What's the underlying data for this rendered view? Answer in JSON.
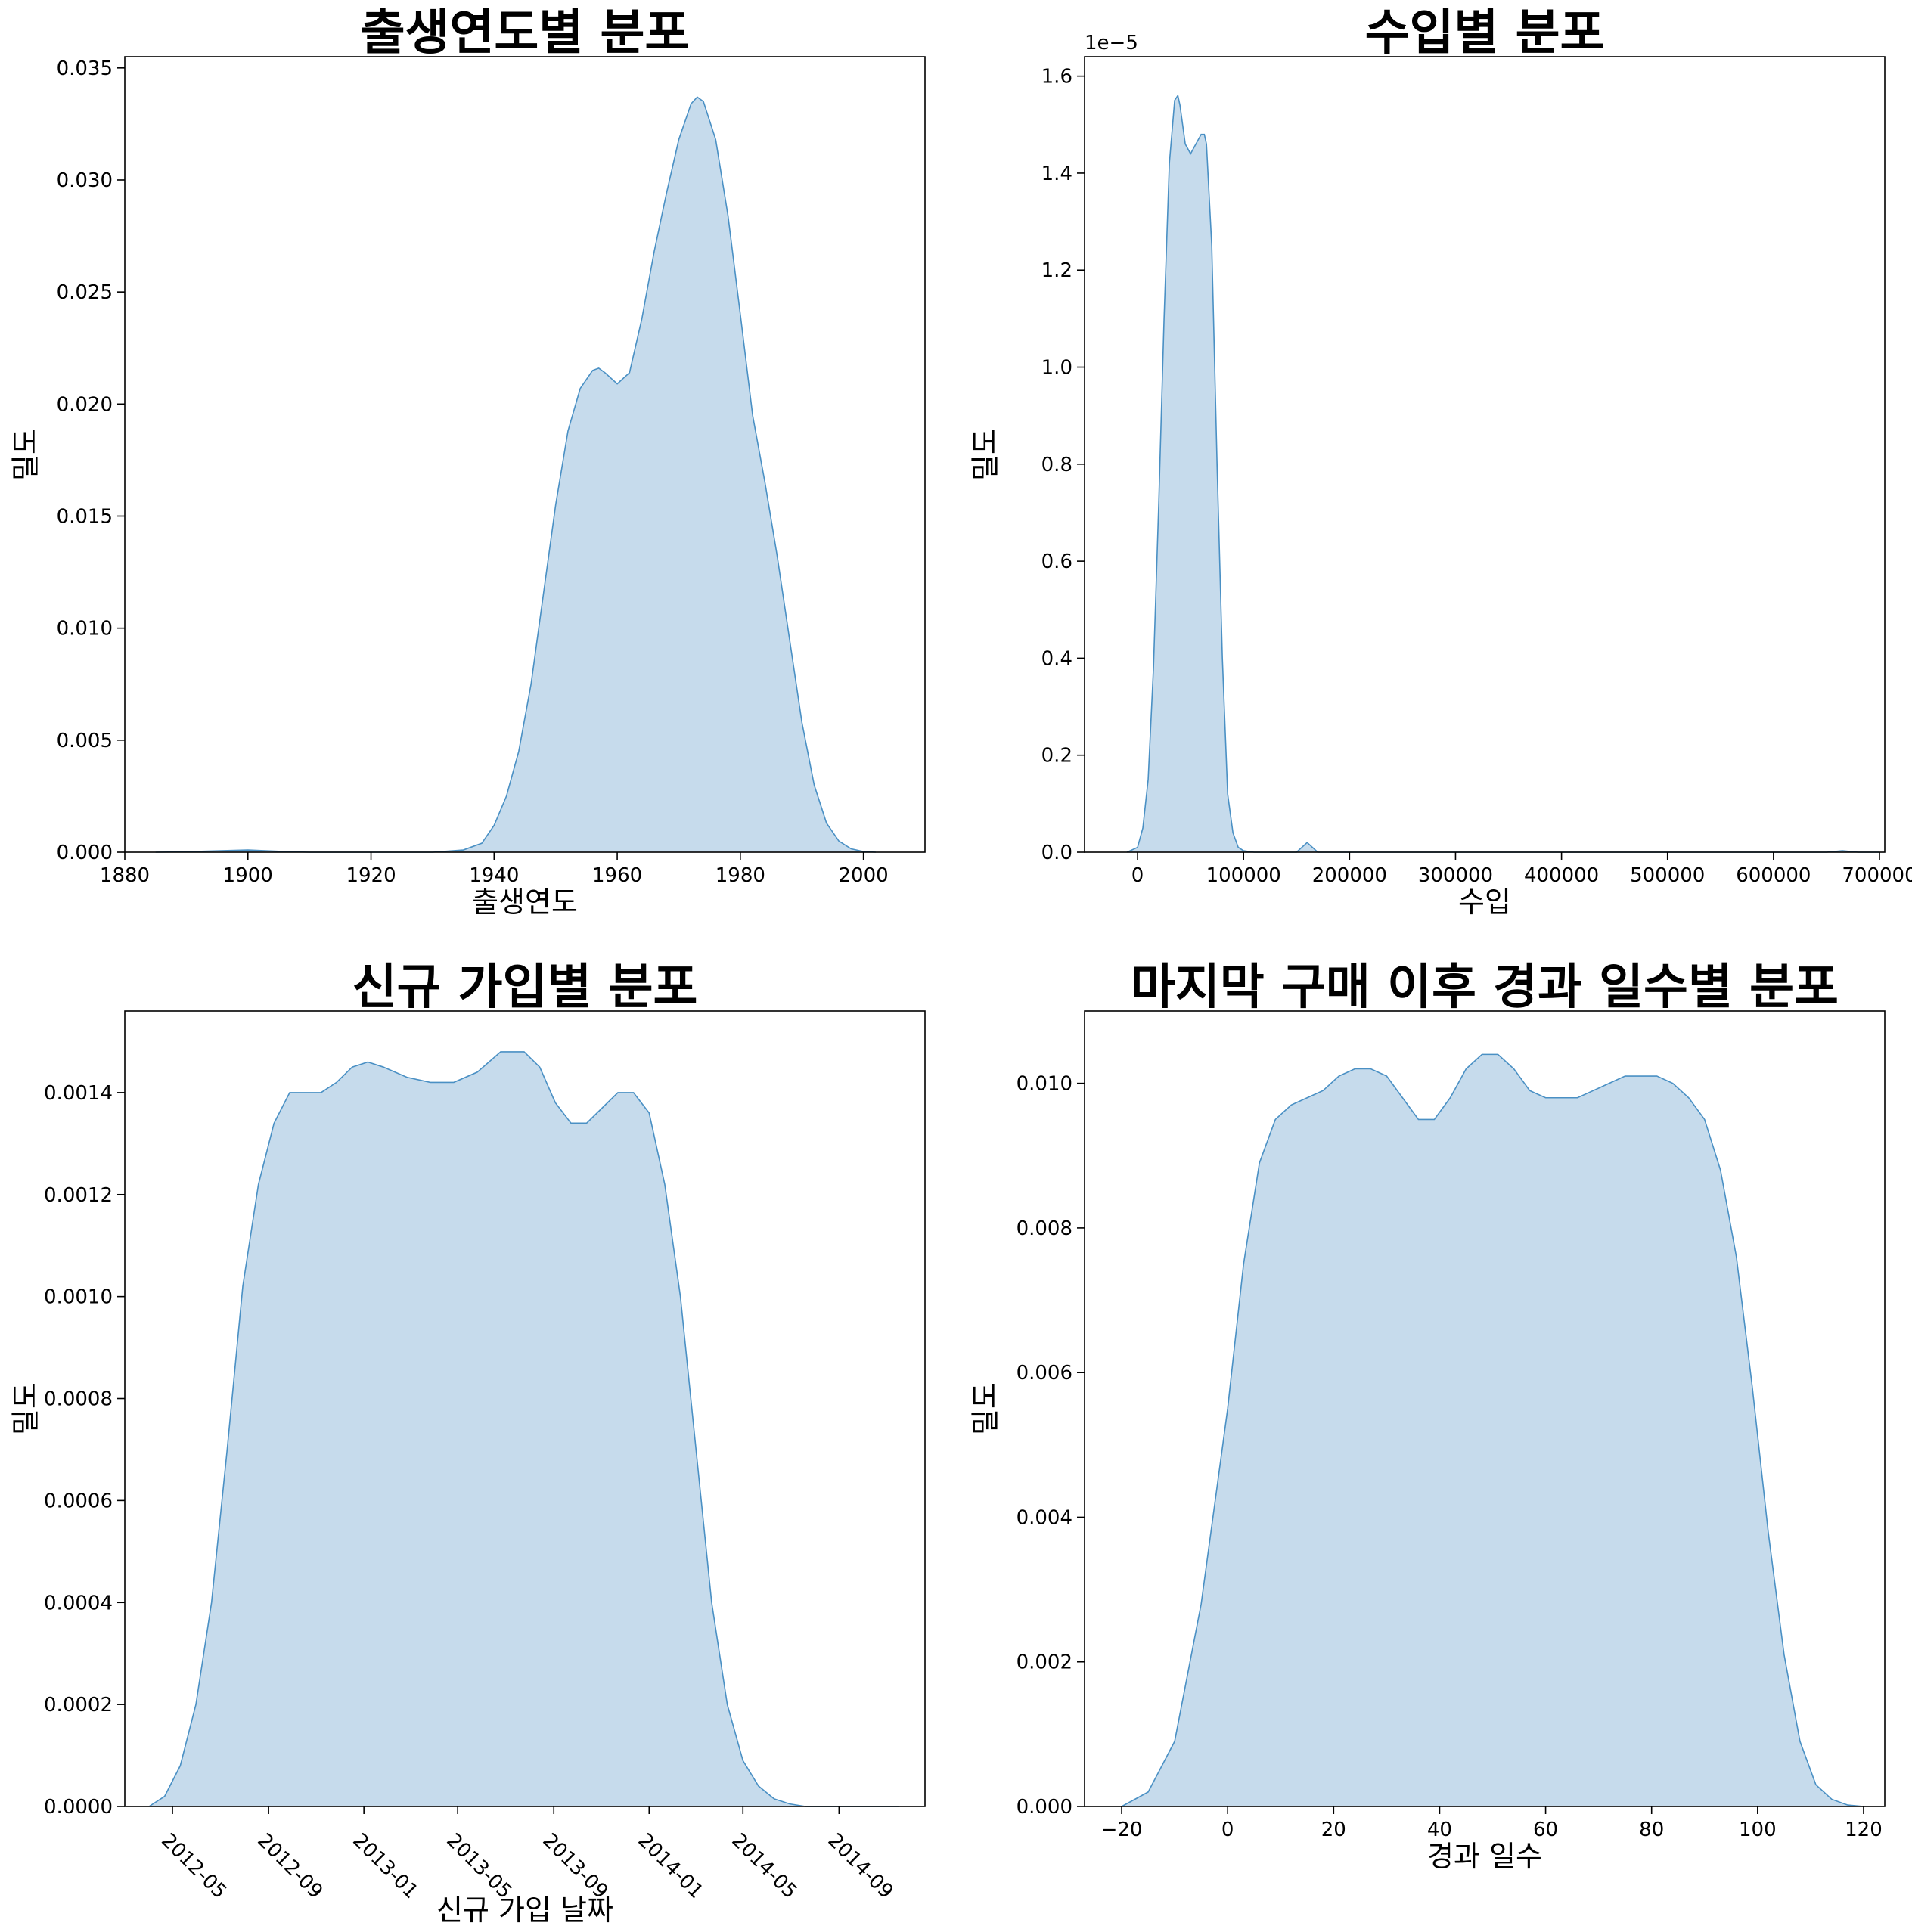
{
  "chart_data": [
    {
      "type": "area",
      "title": "출생연도별 분포",
      "xlabel": "출생연도",
      "ylabel": "밀도",
      "xlim": [
        1880,
        2010
      ],
      "ylim": [
        0,
        0.0355
      ],
      "xticks": [
        1880,
        1900,
        1920,
        1940,
        1960,
        1980,
        2000
      ],
      "xtick_labels": [
        "1880",
        "1900",
        "1920",
        "1940",
        "1960",
        "1980",
        "2000"
      ],
      "yticks": [
        0,
        0.005,
        0.01,
        0.015,
        0.02,
        0.025,
        0.03,
        0.035
      ],
      "ytick_labels": [
        "0.000",
        "0.005",
        "0.010",
        "0.015",
        "0.020",
        "0.025",
        "0.030",
        "0.035"
      ],
      "fill_color": "#c6dbec",
      "line_color": "#4a90c4",
      "x": [
        1885,
        1890,
        1895,
        1900,
        1905,
        1910,
        1920,
        1930,
        1935,
        1938,
        1940,
        1942,
        1944,
        1946,
        1948,
        1950,
        1952,
        1954,
        1956,
        1957,
        1958,
        1960,
        1962,
        1964,
        1966,
        1968,
        1970,
        1972,
        1973,
        1974,
        1976,
        1978,
        1980,
        1982,
        1984,
        1986,
        1988,
        1990,
        1992,
        1994,
        1996,
        1998,
        2000,
        2002
      ],
      "y": [
        0,
        2e-05,
        6e-05,
        0.0001,
        4e-05,
        0,
        0,
        0,
        0.0001,
        0.0004,
        0.0012,
        0.0025,
        0.0045,
        0.0075,
        0.0115,
        0.0155,
        0.0188,
        0.0207,
        0.0215,
        0.0216,
        0.0214,
        0.0209,
        0.0214,
        0.0238,
        0.0268,
        0.0294,
        0.0318,
        0.0334,
        0.0337,
        0.0335,
        0.0318,
        0.0284,
        0.024,
        0.0195,
        0.0165,
        0.0132,
        0.0095,
        0.0058,
        0.003,
        0.0013,
        0.0005,
        0.00015,
        3e-05,
        0
      ]
    },
    {
      "type": "area",
      "title": "수입별 분포",
      "xlabel": "수입",
      "ylabel": "밀도",
      "offset_text": "1e−5",
      "xlim": [
        -50000,
        705000
      ],
      "ylim": [
        0,
        1.64
      ],
      "xticks": [
        0,
        100000,
        200000,
        300000,
        400000,
        500000,
        600000,
        700000
      ],
      "xtick_labels": [
        "0",
        "100000",
        "200000",
        "300000",
        "400000",
        "500000",
        "600000",
        "700000"
      ],
      "yticks": [
        0,
        0.2,
        0.4,
        0.6,
        0.8,
        1.0,
        1.2,
        1.4,
        1.6
      ],
      "ytick_labels": [
        "0.0",
        "0.2",
        "0.4",
        "0.6",
        "0.8",
        "1.0",
        "1.2",
        "1.4",
        "1.6"
      ],
      "fill_color": "#c6dbec",
      "line_color": "#4a90c4",
      "x": [
        -10000,
        0,
        5000,
        10000,
        15000,
        20000,
        25000,
        30000,
        35000,
        38000,
        40000,
        45000,
        50000,
        55000,
        60000,
        63000,
        65000,
        70000,
        75000,
        80000,
        85000,
        90000,
        95000,
        100000,
        110000,
        150000,
        160000,
        170000,
        200000,
        650000,
        665000,
        680000,
        700000
      ],
      "y": [
        0,
        0.01,
        0.05,
        0.15,
        0.38,
        0.72,
        1.1,
        1.42,
        1.55,
        1.56,
        1.54,
        1.46,
        1.44,
        1.46,
        1.48,
        1.48,
        1.46,
        1.25,
        0.8,
        0.4,
        0.12,
        0.04,
        0.01,
        0.003,
        0,
        0,
        0.02,
        0,
        0,
        0,
        0.003,
        0,
        0
      ]
    },
    {
      "type": "area",
      "title": "신규 가입별 분포",
      "xlabel": "신규 가입 날짜",
      "ylabel": "밀도",
      "x_is_date": true,
      "xlim": [
        "2012-03-01",
        "2014-12-20"
      ],
      "ylim": [
        0,
        0.00156
      ],
      "xtick_labels": [
        "2012-05",
        "2012-09",
        "2013-01",
        "2013-05",
        "2013-09",
        "2014-01",
        "2014-05",
        "2014-09"
      ],
      "xticks": [
        "2012-05-01",
        "2012-09-01",
        "2013-01-01",
        "2013-05-01",
        "2013-09-01",
        "2014-01-01",
        "2014-05-01",
        "2014-09-01"
      ],
      "yticks": [
        0,
        0.0002,
        0.0004,
        0.0006,
        0.0008,
        0.001,
        0.0012,
        0.0014
      ],
      "ytick_labels": [
        "0.0000",
        "0.0002",
        "0.0004",
        "0.0006",
        "0.0008",
        "0.0010",
        "0.0012",
        "0.0014"
      ],
      "fill_color": "#c6dbec",
      "line_color": "#4a90c4",
      "x": [
        "2012-04-01",
        "2012-04-21",
        "2012-05-11",
        "2012-05-31",
        "2012-06-20",
        "2012-07-10",
        "2012-07-30",
        "2012-08-19",
        "2012-09-08",
        "2012-09-28",
        "2012-10-18",
        "2012-11-07",
        "2012-11-27",
        "2012-12-17",
        "2013-01-06",
        "2013-01-26",
        "2013-02-25",
        "2013-03-27",
        "2013-04-26",
        "2013-05-26",
        "2013-06-25",
        "2013-07-25",
        "2013-08-14",
        "2013-09-03",
        "2013-09-23",
        "2013-10-13",
        "2013-11-02",
        "2013-11-22",
        "2013-12-12",
        "2014-01-01",
        "2014-01-21",
        "2014-02-10",
        "2014-03-02",
        "2014-03-22",
        "2014-04-11",
        "2014-05-01",
        "2014-05-21",
        "2014-06-10",
        "2014-06-30",
        "2014-07-20",
        "2014-08-09",
        "2014-08-29",
        "2014-09-18",
        "2014-10-08",
        "2014-10-28",
        "2014-11-17"
      ],
      "y": [
        0,
        2e-05,
        8e-05,
        0.0002,
        0.0004,
        0.0007,
        0.00102,
        0.00122,
        0.00134,
        0.0014,
        0.0014,
        0.0014,
        0.00142,
        0.00145,
        0.00146,
        0.00145,
        0.00143,
        0.00142,
        0.00142,
        0.00144,
        0.00148,
        0.00148,
        0.00145,
        0.00138,
        0.00134,
        0.00134,
        0.00137,
        0.0014,
        0.0014,
        0.00136,
        0.00122,
        0.001,
        0.0007,
        0.0004,
        0.0002,
        9e-05,
        4e-05,
        1.5e-05,
        5e-06,
        0,
        0,
        0,
        0,
        0,
        0,
        0
      ]
    },
    {
      "type": "area",
      "title": "마지막 구매 이후 경과 일수별 분포",
      "xlabel": "경과 일수",
      "ylabel": "밀도",
      "xlim": [
        -27,
        124
      ],
      "ylim": [
        0,
        0.011
      ],
      "xticks": [
        -20,
        0,
        20,
        40,
        60,
        80,
        100,
        120
      ],
      "xtick_labels": [
        "−20",
        "0",
        "20",
        "40",
        "60",
        "80",
        "100",
        "120"
      ],
      "yticks": [
        0,
        0.002,
        0.004,
        0.006,
        0.008,
        0.01
      ],
      "ytick_labels": [
        "0.000",
        "0.002",
        "0.004",
        "0.006",
        "0.008",
        "0.010"
      ],
      "fill_color": "#c6dbec",
      "line_color": "#4a90c4",
      "x": [
        -20,
        -15,
        -10,
        -5,
        0,
        3,
        6,
        9,
        12,
        15,
        18,
        21,
        24,
        27,
        30,
        33,
        36,
        39,
        42,
        45,
        48,
        51,
        54,
        57,
        60,
        63,
        66,
        69,
        72,
        75,
        78,
        81,
        84,
        87,
        90,
        93,
        96,
        99,
        102,
        105,
        108,
        111,
        114,
        117,
        120
      ],
      "y": [
        0,
        0.0002,
        0.0009,
        0.0028,
        0.0055,
        0.0075,
        0.0089,
        0.0095,
        0.0097,
        0.0098,
        0.0099,
        0.0101,
        0.0102,
        0.0102,
        0.0101,
        0.0098,
        0.0095,
        0.0095,
        0.0098,
        0.0102,
        0.0104,
        0.0104,
        0.0102,
        0.0099,
        0.0098,
        0.0098,
        0.0098,
        0.0099,
        0.01,
        0.0101,
        0.0101,
        0.0101,
        0.01,
        0.0098,
        0.0095,
        0.0088,
        0.0076,
        0.0058,
        0.0038,
        0.0021,
        0.0009,
        0.0003,
        0.0001,
        2e-05,
        0
      ]
    }
  ]
}
